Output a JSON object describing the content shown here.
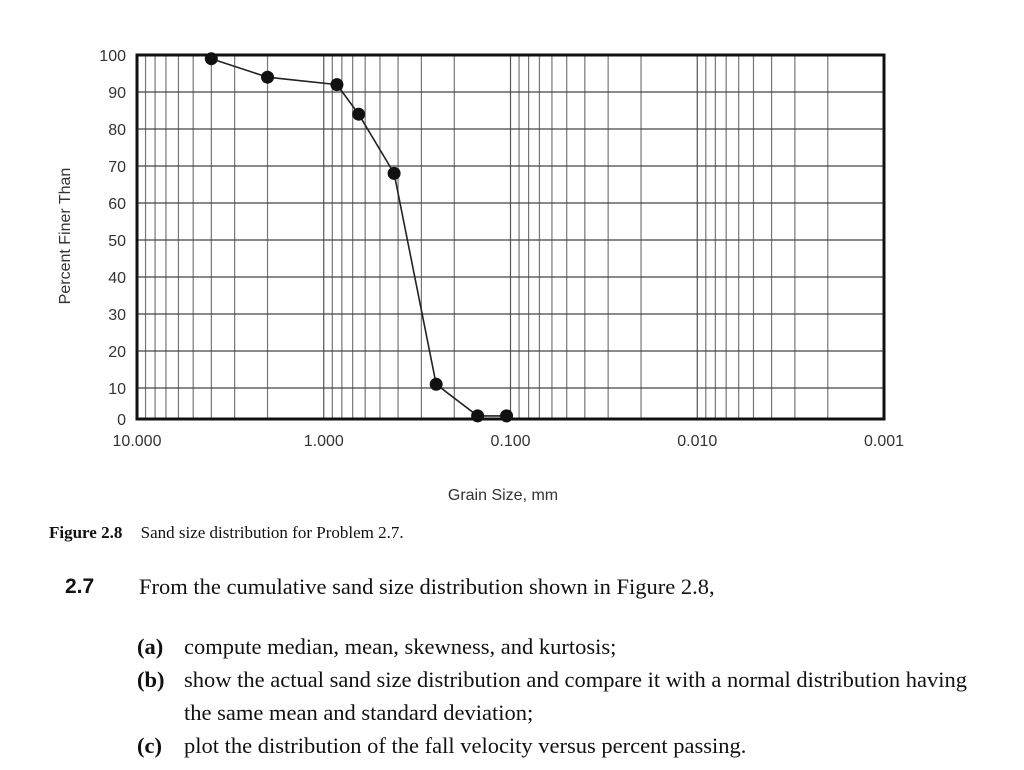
{
  "chart_data": {
    "type": "line",
    "title": "",
    "xlabel": "Grain Size, mm",
    "ylabel": "Percent Finer Than",
    "x_scale": "log",
    "x_reversed": true,
    "xlim": [
      10.0,
      0.001
    ],
    "ylim": [
      0,
      100
    ],
    "x_tick_labels": [
      "10.000",
      "1.000",
      "0.100",
      "0.010",
      "0.001"
    ],
    "x_ticks": [
      10.0,
      1.0,
      0.1,
      0.01,
      0.001
    ],
    "y_tick_labels": [
      "0",
      "10",
      "20",
      "30",
      "40",
      "50",
      "60",
      "70",
      "80",
      "90",
      "100"
    ],
    "y_ticks": [
      0,
      10,
      20,
      30,
      40,
      50,
      60,
      70,
      80,
      90,
      100
    ],
    "grid": true,
    "legend": null,
    "series": [
      {
        "name": "Sand size distribution",
        "marker": "filled-circle",
        "x": [
          4.0,
          2.0,
          0.85,
          0.65,
          0.42,
          0.25,
          0.15,
          0.105
        ],
        "y": [
          99,
          94,
          92,
          84,
          68,
          11,
          1,
          1
        ]
      }
    ]
  },
  "caption": {
    "figure_number": "Figure 2.8",
    "text": "Sand size distribution for Problem 2.7."
  },
  "problem": {
    "number": "2.7",
    "stem": "From the cumulative sand size distribution shown in Figure 2.8,",
    "parts": [
      {
        "mark": "(a)",
        "text": "compute median, mean, skewness, and kurtosis;"
      },
      {
        "mark": "(b)",
        "text": "show the actual sand size distribution and compare it with a normal distribution having the same mean and standard deviation;"
      },
      {
        "mark": "(c)",
        "text": "plot the distribution of the fall velocity versus percent passing."
      }
    ]
  }
}
